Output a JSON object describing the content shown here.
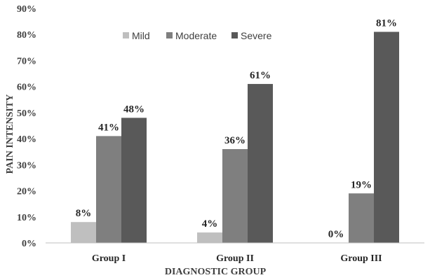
{
  "chart_data": {
    "type": "bar",
    "title": "",
    "categories": [
      "Group I",
      "Group II",
      "Group III"
    ],
    "series": [
      {
        "name": "Mild",
        "values": [
          8,
          4,
          0
        ],
        "labels": [
          "8%",
          "4%",
          "0%"
        ],
        "color": "#bfbfbf"
      },
      {
        "name": "Moderate",
        "values": [
          41,
          36,
          19
        ],
        "labels": [
          "41%",
          "36%",
          "19%"
        ],
        "color": "#7f7f7f"
      },
      {
        "name": "Severe",
        "values": [
          48,
          61,
          81
        ],
        "labels": [
          "48%",
          "61%",
          "81%"
        ],
        "color": "#595959"
      }
    ],
    "xlabel": "DIAGNOSTIC GROUP",
    "ylabel": "PAIN INTENSITY",
    "ylim": [
      0,
      90
    ],
    "yticks": [
      0,
      10,
      20,
      30,
      40,
      50,
      60,
      70,
      80,
      90
    ],
    "ytick_labels": [
      "0%",
      "10%",
      "20%",
      "30%",
      "40%",
      "50%",
      "60%",
      "70%",
      "80%",
      "90%"
    ],
    "grid": false,
    "legend": "top-center"
  }
}
